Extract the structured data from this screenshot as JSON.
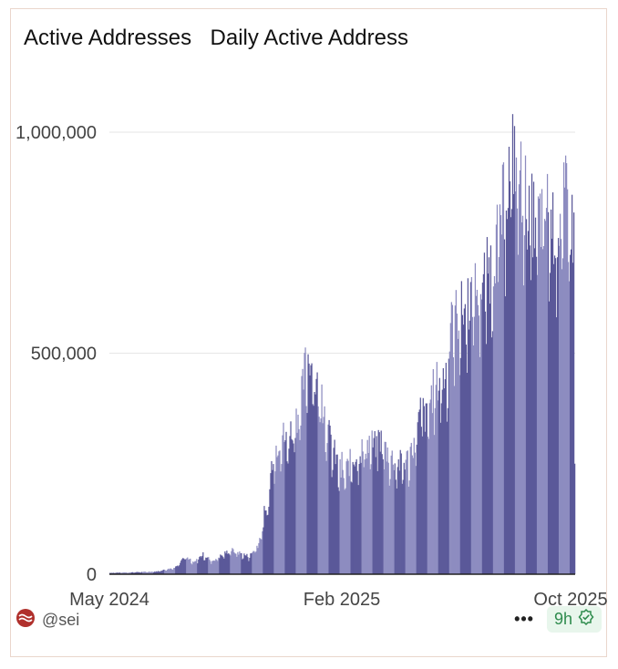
{
  "header": {
    "title": "Active Addresses",
    "subtitle": "Daily Active Address"
  },
  "chart_data": {
    "type": "bar",
    "title": "Active Addresses",
    "subtitle": "Daily Active Address",
    "xlabel": "",
    "ylabel": "",
    "ylim": [
      0,
      1100000
    ],
    "y_ticks": [
      0,
      500000,
      1000000
    ],
    "y_tick_labels": [
      "0",
      "500,000",
      "1,000,000"
    ],
    "x_tick_labels": [
      "May 2024",
      "Feb 2025",
      "Oct 2025"
    ],
    "x_range": [
      "2024-05",
      "2025-10"
    ],
    "grid": true,
    "bar_color": "#5a5899",
    "bar_color_light": "#8d8cc0",
    "anchors": [
      [
        0,
        3000
      ],
      [
        4,
        4000
      ],
      [
        10,
        6000
      ],
      [
        14,
        15000
      ],
      [
        16,
        40000
      ],
      [
        18,
        25000
      ],
      [
        20,
        45000
      ],
      [
        22,
        30000
      ],
      [
        26,
        55000
      ],
      [
        30,
        40000
      ],
      [
        32,
        70000
      ],
      [
        34,
        160000
      ],
      [
        35,
        270000
      ],
      [
        37,
        320000
      ],
      [
        38,
        300000
      ],
      [
        41,
        380000
      ],
      [
        42,
        470000
      ],
      [
        43,
        500000
      ],
      [
        44,
        440000
      ],
      [
        46,
        380000
      ],
      [
        47,
        320000
      ],
      [
        49,
        250000
      ],
      [
        50,
        220000
      ],
      [
        52,
        260000
      ],
      [
        54,
        280000
      ],
      [
        56,
        300000
      ],
      [
        57,
        290000
      ],
      [
        58,
        310000
      ],
      [
        60,
        270000
      ],
      [
        62,
        250000
      ],
      [
        64,
        260000
      ],
      [
        66,
        320000
      ],
      [
        67,
        380000
      ],
      [
        68,
        350000
      ],
      [
        69,
        400000
      ],
      [
        70,
        430000
      ],
      [
        72,
        450000
      ],
      [
        73,
        500000
      ],
      [
        74,
        580000
      ],
      [
        76,
        600000
      ],
      [
        78,
        640000
      ],
      [
        80,
        660000
      ],
      [
        82,
        700000
      ],
      [
        84,
        800000
      ],
      [
        86,
        920000
      ],
      [
        87,
        960000
      ],
      [
        88,
        900000
      ],
      [
        89,
        880000
      ],
      [
        90,
        820000
      ],
      [
        92,
        800000
      ],
      [
        94,
        830000
      ],
      [
        96,
        780000
      ],
      [
        98,
        850000
      ],
      [
        100,
        760000
      ]
    ],
    "last_value": 250000
  },
  "footer": {
    "handle": "@sei",
    "more_label": "•••",
    "freshness": "9h",
    "icon_sei": "sei-logo-icon",
    "icon_verified": "check-badge-icon",
    "brand_color": "#b0302c",
    "badge_color": "#2e8b4d"
  }
}
